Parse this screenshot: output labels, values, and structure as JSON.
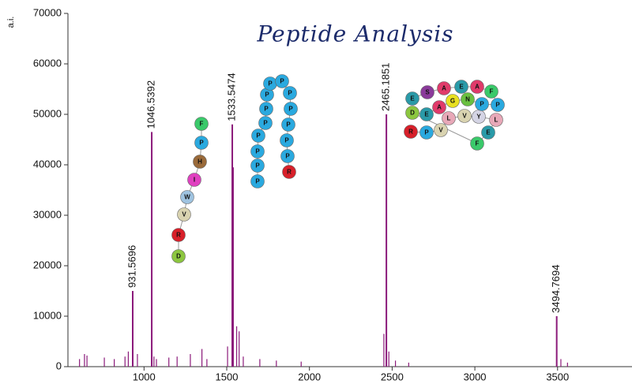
{
  "chart_data": {
    "type": "spectrum",
    "title": "Peptide Analysis",
    "y_label": "a.i.",
    "color": "#8b1a7a",
    "xlim": [
      540,
      3950
    ],
    "ylim": [
      0,
      70000
    ],
    "xticks": [
      1000,
      1500,
      2000,
      2500,
      3000,
      3500
    ],
    "yticks": [
      0,
      10000,
      20000,
      30000,
      40000,
      50000,
      60000,
      70000
    ],
    "x": [
      931.5696,
      1046.5392,
      1533.5474,
      2465.1851,
      3494.7694
    ],
    "values": [
      15000,
      46500,
      48000,
      50000,
      10000
    ],
    "minor_peaks": {
      "x": [
        610,
        640,
        655,
        760,
        820,
        885,
        905,
        960,
        1060,
        1075,
        1150,
        1200,
        1280,
        1350,
        1380,
        1505,
        1540,
        1560,
        1575,
        1600,
        1700,
        1800,
        1950,
        2450,
        2480,
        2520,
        2600,
        3520,
        3560
      ],
      "values": [
        1500,
        2500,
        2200,
        1800,
        1500,
        2000,
        3000,
        2500,
        2000,
        1500,
        1800,
        2000,
        2500,
        3500,
        1500,
        4000,
        39500,
        8000,
        7000,
        2000,
        1500,
        1200,
        1000,
        6500,
        3000,
        1200,
        800,
        1500,
        800
      ]
    },
    "peptides": [
      [
        "D",
        "R",
        "V",
        "W",
        "I",
        "H",
        "P",
        "F"
      ],
      [
        "P",
        "P",
        "P",
        "P",
        "P",
        "P",
        "P",
        "P",
        "P",
        "P",
        "P",
        "P",
        "P",
        "P",
        "R"
      ],
      [
        "R",
        "P",
        "V",
        "L",
        "V",
        "Y",
        "L",
        "E",
        "F",
        "D",
        "E",
        "A",
        "G",
        "N",
        "P",
        "P",
        "F",
        "A",
        "E",
        "A",
        "S",
        "E"
      ]
    ]
  }
}
